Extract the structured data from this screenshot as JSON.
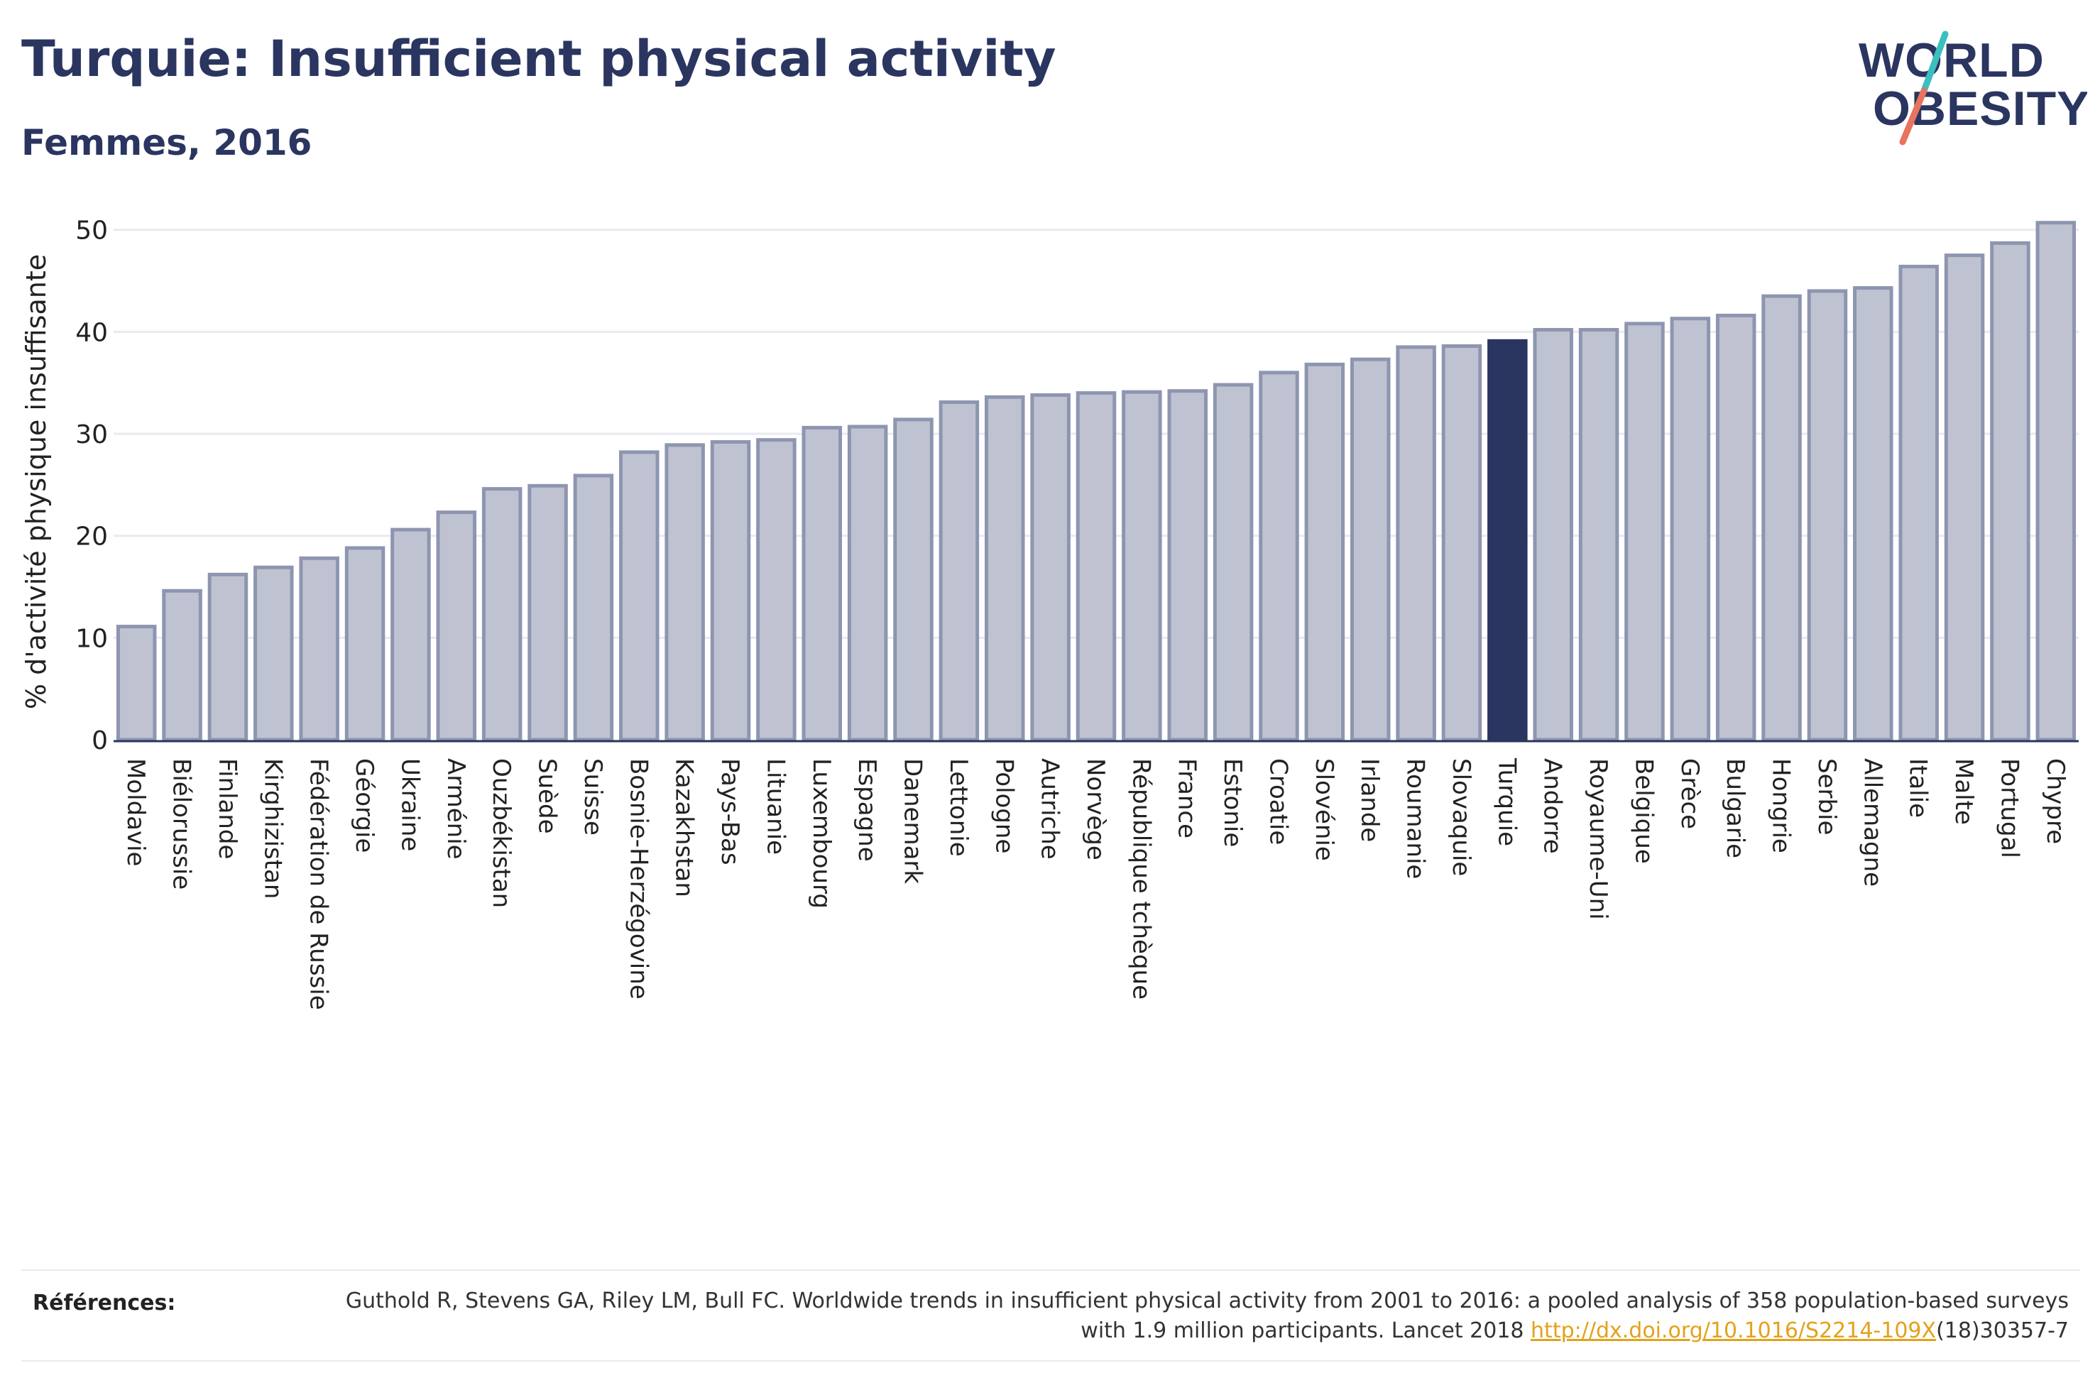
{
  "header": {
    "title": "Turquie: Insufficient physical activity",
    "subtitle": "Femmes, 2016"
  },
  "logo": {
    "line1": "WORLD",
    "line2": "OBESITY"
  },
  "colors": {
    "text": "#2a3560",
    "bar": "#bfc3d1",
    "bar_border": "#8e95b0",
    "highlight": "#2a3560",
    "grid": "#e8eaef",
    "logo_teal": "#3bbfbf",
    "logo_coral": "#e8735e",
    "link": "#e3a21a"
  },
  "chart_data": {
    "type": "bar",
    "title": "Turquie: Insufficient physical activity",
    "subtitle": "Femmes, 2016",
    "xlabel": "",
    "ylabel": "% d'activité physique insuffisante",
    "ylim": [
      0,
      52
    ],
    "yticks": [
      0,
      10,
      20,
      30,
      40,
      50
    ],
    "grid": true,
    "highlight": "Turquie",
    "categories": [
      "Moldavie",
      "Biélorussie",
      "Finlande",
      "Kirghizistan",
      "Fédération de Russie",
      "Géorgie",
      "Ukraine",
      "Arménie",
      "Ouzbékistan",
      "Suède",
      "Suisse",
      "Bosnie-Herzégovine",
      "Kazakhstan",
      "Pays-Bas",
      "Lituanie",
      "Luxembourg",
      "Espagne",
      "Danemark",
      "Lettonie",
      "Pologne",
      "Autriche",
      "Norvège",
      "République tchèque",
      "France",
      "Estonie",
      "Croatie",
      "Slovénie",
      "Irlande",
      "Roumanie",
      "Slovaquie",
      "Turquie",
      "Andorre",
      "Royaume-Uni",
      "Belgique",
      "Grèce",
      "Bulgarie",
      "Hongrie",
      "Serbie",
      "Allemagne",
      "Italie",
      "Malte",
      "Portugal",
      "Chypre"
    ],
    "values": [
      11.1,
      14.6,
      16.2,
      16.9,
      17.8,
      18.8,
      20.6,
      22.3,
      24.6,
      24.9,
      25.9,
      28.2,
      28.9,
      29.2,
      29.4,
      30.6,
      30.7,
      31.4,
      33.1,
      33.6,
      33.8,
      34.0,
      34.1,
      34.2,
      34.8,
      36.0,
      36.8,
      37.3,
      38.5,
      38.6,
      39.1,
      40.2,
      40.2,
      40.8,
      41.3,
      41.6,
      43.5,
      44.0,
      44.3,
      46.4,
      47.5,
      48.7,
      50.7
    ]
  },
  "references": {
    "label": "Références:",
    "text_before": "Guthold R, Stevens GA, Riley LM, Bull FC. Worldwide trends in insufficient physical activity from 2001 to 2016: a pooled analysis of 358 population-based surveys with 1.9 million participants. Lancet 2018 ",
    "link": "http://dx.doi.org/10.1016/S2214-109X",
    "text_after": "(18)30357-7"
  }
}
